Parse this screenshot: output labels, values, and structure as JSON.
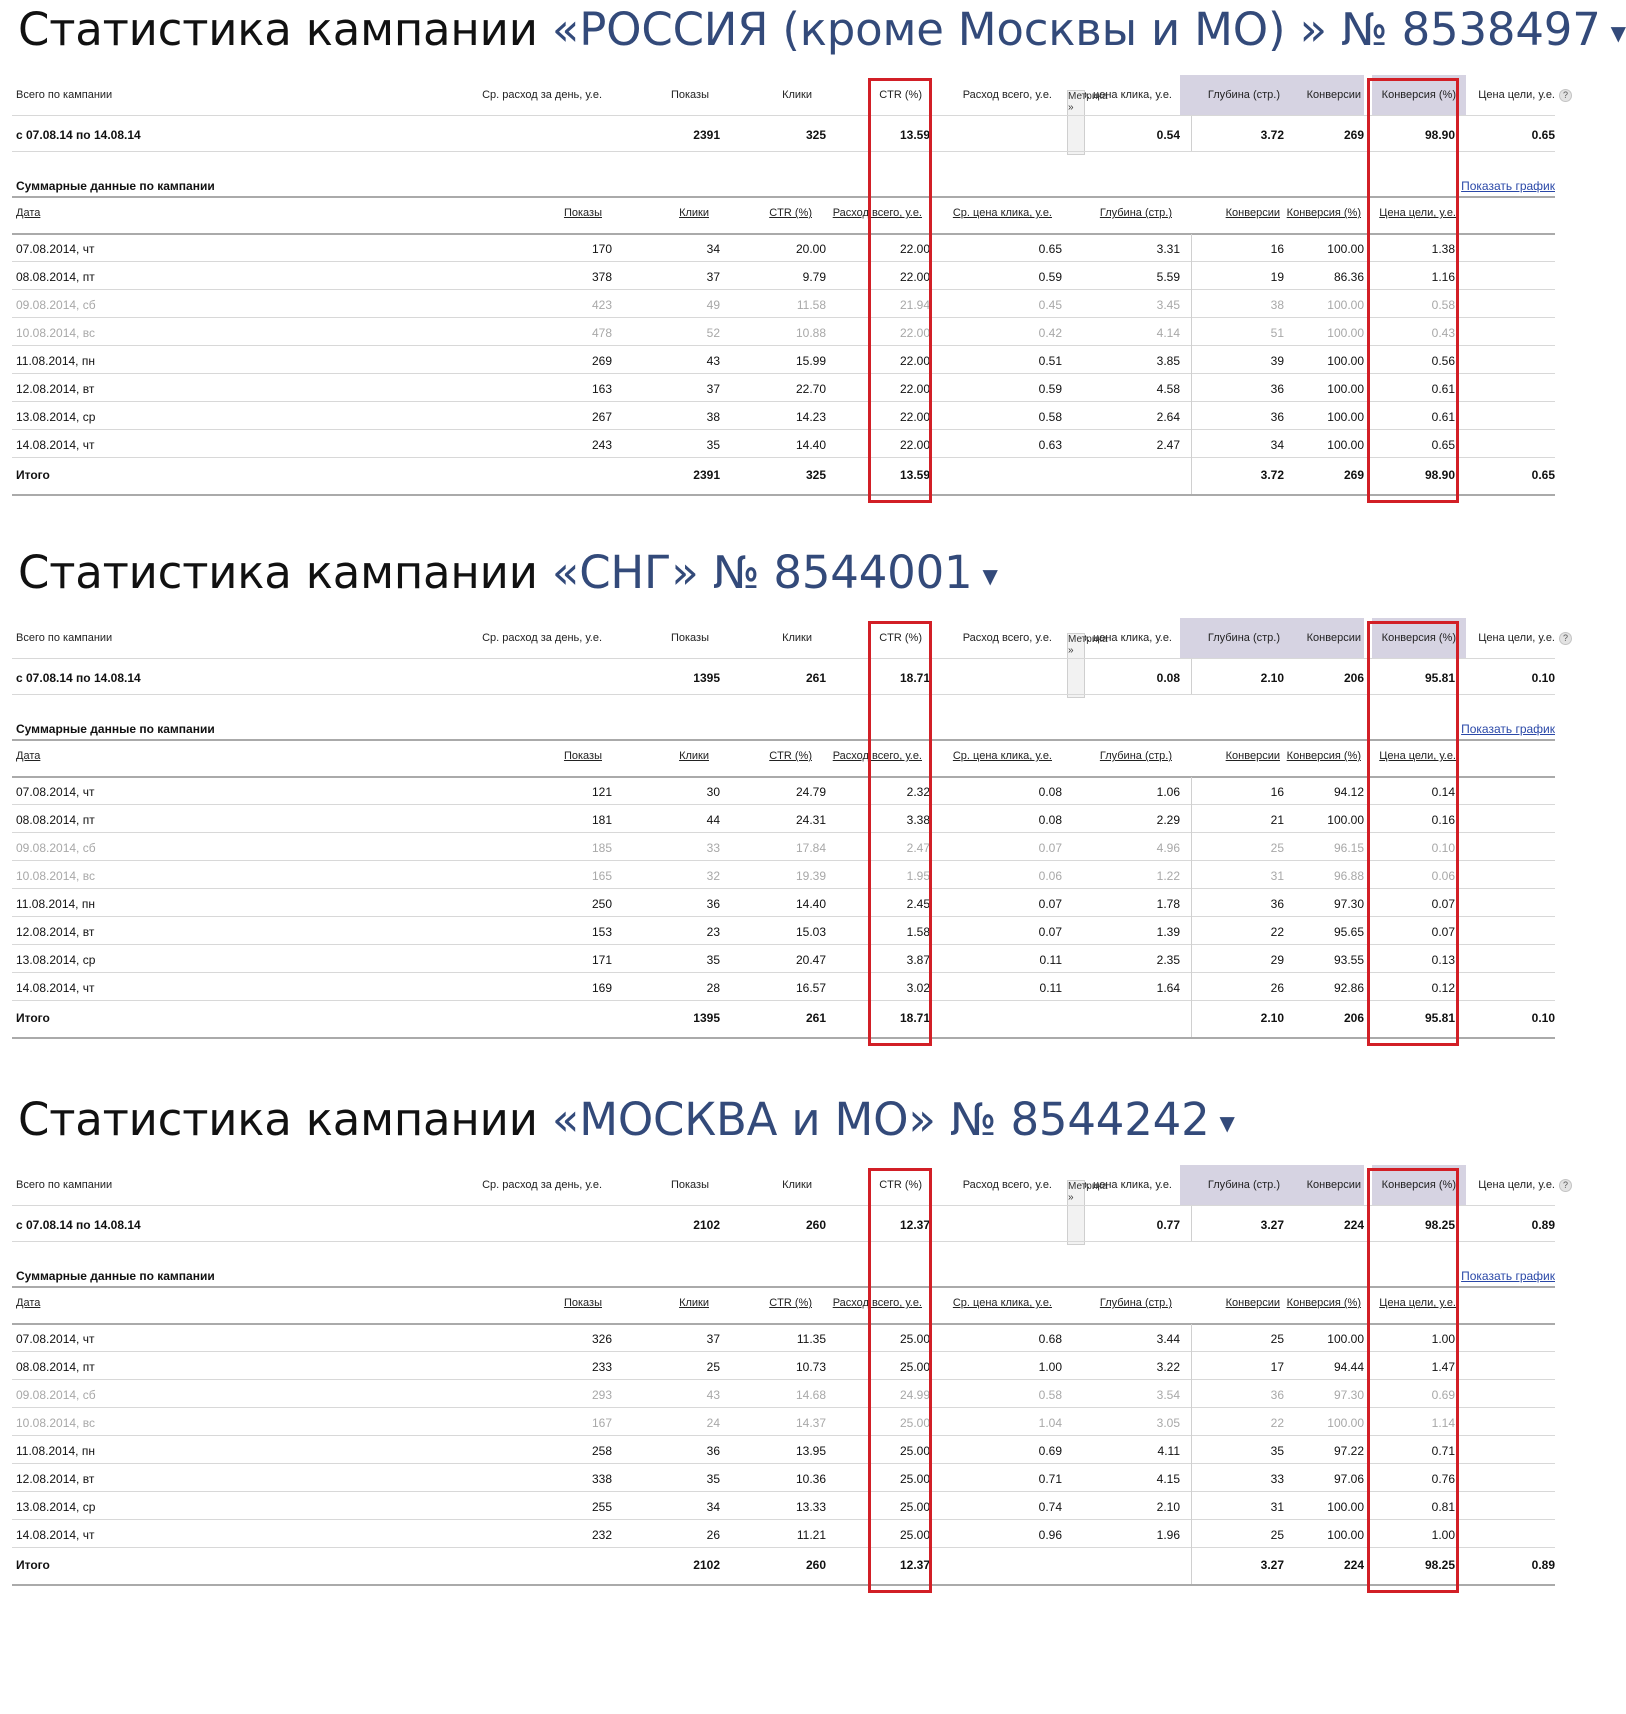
{
  "labels": {
    "title_prefix": "Статистика кампании",
    "summary_label": "Всего по кампании",
    "cols_top": [
      "Ср. расход за день, у.е.",
      "Показы",
      "Клики",
      "CTR (%)",
      "Расход всего, у.е.",
      "Ср. цена клика, у.е.",
      "Глубина (стр.)",
      "Конверсии",
      "Конверсия (%)",
      "Цена цели, у.е."
    ],
    "metrika": "Метрика »",
    "help": "?",
    "section_title": "Суммарные данные по кампании",
    "show_chart": "Показать график",
    "cols_daily": [
      "Дата",
      "Показы",
      "Клики",
      "CTR (%)",
      "Расход всего, у.е.",
      "Ср. цена клика, у.е.",
      "Глубина (стр.)",
      "Конверсии",
      "Конверсия (%)",
      "Цена цели, у.е."
    ],
    "total_label": "Итого",
    "dropdown_icon": "▼"
  },
  "campaigns": [
    {
      "name": "«РОССИЯ (кроме Москвы и МО) » № 8538497",
      "period": "с 07.08.14 по 14.08.14",
      "summary": [
        "",
        "2391",
        "325",
        "13.59",
        "",
        "0.54",
        "3.72",
        "269",
        "98.90",
        "0.65"
      ],
      "rows": [
        {
          "weekend": false,
          "cells": [
            "07.08.2014, чт",
            "170",
            "34",
            "20.00",
            "22.00",
            "0.65",
            "3.31",
            "16",
            "100.00",
            "1.38"
          ]
        },
        {
          "weekend": false,
          "cells": [
            "08.08.2014, пт",
            "378",
            "37",
            "9.79",
            "22.00",
            "0.59",
            "5.59",
            "19",
            "86.36",
            "1.16"
          ]
        },
        {
          "weekend": true,
          "cells": [
            "09.08.2014, сб",
            "423",
            "49",
            "11.58",
            "21.94",
            "0.45",
            "3.45",
            "38",
            "100.00",
            "0.58"
          ]
        },
        {
          "weekend": true,
          "cells": [
            "10.08.2014, вс",
            "478",
            "52",
            "10.88",
            "22.00",
            "0.42",
            "4.14",
            "51",
            "100.00",
            "0.43"
          ]
        },
        {
          "weekend": false,
          "cells": [
            "11.08.2014, пн",
            "269",
            "43",
            "15.99",
            "22.00",
            "0.51",
            "3.85",
            "39",
            "100.00",
            "0.56"
          ]
        },
        {
          "weekend": false,
          "cells": [
            "12.08.2014, вт",
            "163",
            "37",
            "22.70",
            "22.00",
            "0.59",
            "4.58",
            "36",
            "100.00",
            "0.61"
          ]
        },
        {
          "weekend": false,
          "cells": [
            "13.08.2014, ср",
            "267",
            "38",
            "14.23",
            "22.00",
            "0.58",
            "2.64",
            "36",
            "100.00",
            "0.61"
          ]
        },
        {
          "weekend": false,
          "cells": [
            "14.08.2014, чт",
            "243",
            "35",
            "14.40",
            "22.00",
            "0.63",
            "2.47",
            "34",
            "100.00",
            "0.65"
          ]
        }
      ],
      "total": [
        "",
        "2391",
        "325",
        "13.59",
        "",
        "",
        "3.72",
        "269",
        "98.90",
        "0.65"
      ]
    },
    {
      "name": "«СНГ» № 8544001",
      "period": "с 07.08.14 по 14.08.14",
      "summary": [
        "",
        "1395",
        "261",
        "18.71",
        "",
        "0.08",
        "2.10",
        "206",
        "95.81",
        "0.10"
      ],
      "rows": [
        {
          "weekend": false,
          "cells": [
            "07.08.2014, чт",
            "121",
            "30",
            "24.79",
            "2.32",
            "0.08",
            "1.06",
            "16",
            "94.12",
            "0.14"
          ]
        },
        {
          "weekend": false,
          "cells": [
            "08.08.2014, пт",
            "181",
            "44",
            "24.31",
            "3.38",
            "0.08",
            "2.29",
            "21",
            "100.00",
            "0.16"
          ]
        },
        {
          "weekend": true,
          "cells": [
            "09.08.2014, сб",
            "185",
            "33",
            "17.84",
            "2.47",
            "0.07",
            "4.96",
            "25",
            "96.15",
            "0.10"
          ]
        },
        {
          "weekend": true,
          "cells": [
            "10.08.2014, вс",
            "165",
            "32",
            "19.39",
            "1.95",
            "0.06",
            "1.22",
            "31",
            "96.88",
            "0.06"
          ]
        },
        {
          "weekend": false,
          "cells": [
            "11.08.2014, пн",
            "250",
            "36",
            "14.40",
            "2.45",
            "0.07",
            "1.78",
            "36",
            "97.30",
            "0.07"
          ]
        },
        {
          "weekend": false,
          "cells": [
            "12.08.2014, вт",
            "153",
            "23",
            "15.03",
            "1.58",
            "0.07",
            "1.39",
            "22",
            "95.65",
            "0.07"
          ]
        },
        {
          "weekend": false,
          "cells": [
            "13.08.2014, ср",
            "171",
            "35",
            "20.47",
            "3.87",
            "0.11",
            "2.35",
            "29",
            "93.55",
            "0.13"
          ]
        },
        {
          "weekend": false,
          "cells": [
            "14.08.2014, чт",
            "169",
            "28",
            "16.57",
            "3.02",
            "0.11",
            "1.64",
            "26",
            "92.86",
            "0.12"
          ]
        }
      ],
      "total": [
        "",
        "1395",
        "261",
        "18.71",
        "",
        "",
        "2.10",
        "206",
        "95.81",
        "0.10"
      ]
    },
    {
      "name": "«МОСКВА и МО» № 8544242",
      "period": "с 07.08.14 по 14.08.14",
      "summary": [
        "",
        "2102",
        "260",
        "12.37",
        "",
        "0.77",
        "3.27",
        "224",
        "98.25",
        "0.89"
      ],
      "rows": [
        {
          "weekend": false,
          "cells": [
            "07.08.2014, чт",
            "326",
            "37",
            "11.35",
            "25.00",
            "0.68",
            "3.44",
            "25",
            "100.00",
            "1.00"
          ]
        },
        {
          "weekend": false,
          "cells": [
            "08.08.2014, пт",
            "233",
            "25",
            "10.73",
            "25.00",
            "1.00",
            "3.22",
            "17",
            "94.44",
            "1.47"
          ]
        },
        {
          "weekend": true,
          "cells": [
            "09.08.2014, сб",
            "293",
            "43",
            "14.68",
            "24.99",
            "0.58",
            "3.54",
            "36",
            "97.30",
            "0.69"
          ]
        },
        {
          "weekend": true,
          "cells": [
            "10.08.2014, вс",
            "167",
            "24",
            "14.37",
            "25.00",
            "1.04",
            "3.05",
            "22",
            "100.00",
            "1.14"
          ]
        },
        {
          "weekend": false,
          "cells": [
            "11.08.2014, пн",
            "258",
            "36",
            "13.95",
            "25.00",
            "0.69",
            "4.11",
            "35",
            "97.22",
            "0.71"
          ]
        },
        {
          "weekend": false,
          "cells": [
            "12.08.2014, вт",
            "338",
            "35",
            "10.36",
            "25.00",
            "0.71",
            "4.15",
            "33",
            "97.06",
            "0.76"
          ]
        },
        {
          "weekend": false,
          "cells": [
            "13.08.2014, ср",
            "255",
            "34",
            "13.33",
            "25.00",
            "0.74",
            "2.10",
            "31",
            "100.00",
            "0.81"
          ]
        },
        {
          "weekend": false,
          "cells": [
            "14.08.2014, чт",
            "232",
            "26",
            "11.21",
            "25.00",
            "0.96",
            "1.96",
            "25",
            "100.00",
            "1.00"
          ]
        }
      ],
      "total": [
        "",
        "2102",
        "260",
        "12.37",
        "",
        "",
        "3.27",
        "224",
        "98.25",
        "0.89"
      ]
    }
  ]
}
